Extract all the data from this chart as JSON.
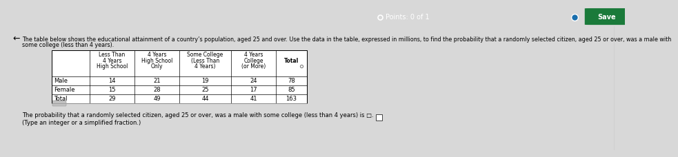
{
  "title_line1": "The table below shows the educational attainment of a country’s population, aged 25 and over. Use the data in the table, expressed in millions, to find the probability that a randomly selected citizen, aged 25 or over, was a male with",
  "title_line2": "some college (less than 4 years).",
  "col_headers": [
    [
      "Less Than",
      "4 Years",
      "High School"
    ],
    [
      "4 Years",
      "High School",
      "Only"
    ],
    [
      "Some College",
      "(Less Than",
      "4 Years)"
    ],
    [
      "4 Years",
      "College",
      "(or More)"
    ],
    [
      "Total"
    ]
  ],
  "row_labels": [
    "Male",
    "Female",
    "Total"
  ],
  "table_data": [
    [
      14,
      21,
      19,
      24,
      78
    ],
    [
      15,
      28,
      25,
      17,
      85
    ],
    [
      29,
      49,
      44,
      41,
      163
    ]
  ],
  "footer_line1": "The probability that a randomly selected citizen, aged 25 or over, was a male with some college (less than 4 years) is □.",
  "footer_line2": "(Type an integer or a simplified fraction.)",
  "top_bar_color": "#1a6fad",
  "save_btn_color": "#1a7a3a",
  "main_bg": "#d8d8d8",
  "content_bg": "#f5f5f5",
  "points_text": "Points: 0 of 1"
}
